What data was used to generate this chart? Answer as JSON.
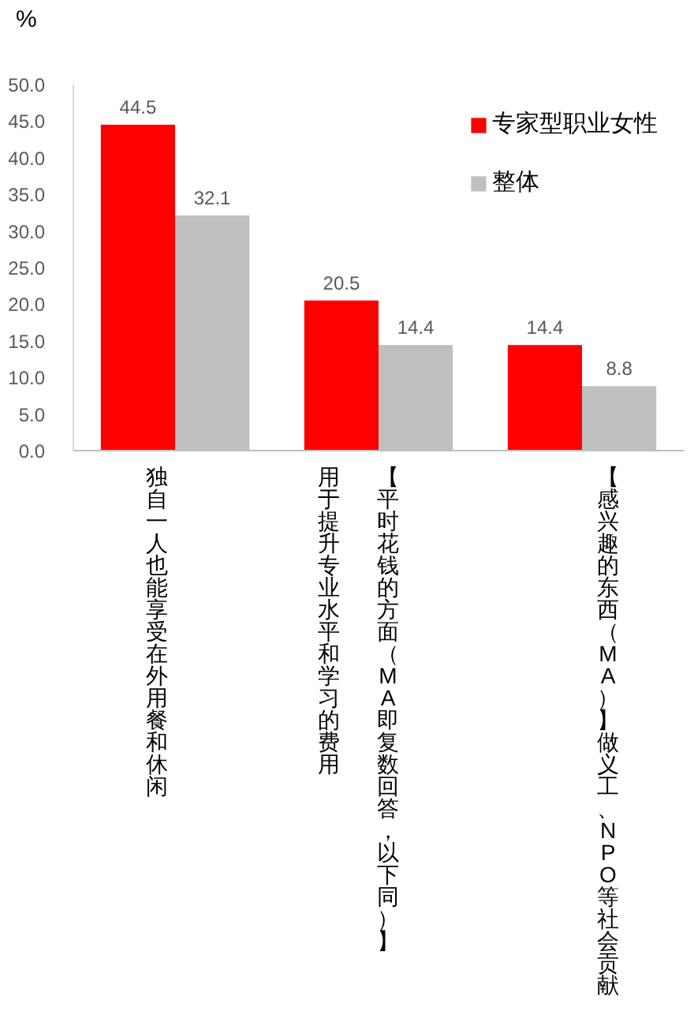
{
  "chart_data": {
    "type": "bar",
    "ylabel": "%",
    "categories": [
      "独自一人也能享受在外用餐和休闲",
      "用于提升专业水平和学习的费用",
      "【感兴趣的东西（MA）】做义工、NPO等社会贡献"
    ],
    "annotations": [
      "【平时花钱的方面（MA即复数回答，以下同）】"
    ],
    "series": [
      {
        "name": "专家型职业女性",
        "color": "#ff0000",
        "values": [
          44.5,
          20.5,
          14.4
        ]
      },
      {
        "name": "整体",
        "color": "#bfbfbf",
        "values": [
          32.1,
          14.4,
          8.8
        ]
      }
    ],
    "ylim": [
      0,
      50
    ],
    "yticks": [
      {
        "value": 0,
        "label": "0.0"
      },
      {
        "value": 5,
        "label": "5.0"
      },
      {
        "value": 10,
        "label": "10.0"
      },
      {
        "value": 15,
        "label": "15.0"
      },
      {
        "value": 20,
        "label": "20.0"
      },
      {
        "value": 25,
        "label": "25.0"
      },
      {
        "value": 30,
        "label": "30.0"
      },
      {
        "value": 35,
        "label": "35.0"
      },
      {
        "value": 40,
        "label": "40.0"
      },
      {
        "value": 45,
        "label": "45.0"
      },
      {
        "value": 50,
        "label": "50.0"
      }
    ],
    "data_labels": true,
    "legend": "top right"
  }
}
